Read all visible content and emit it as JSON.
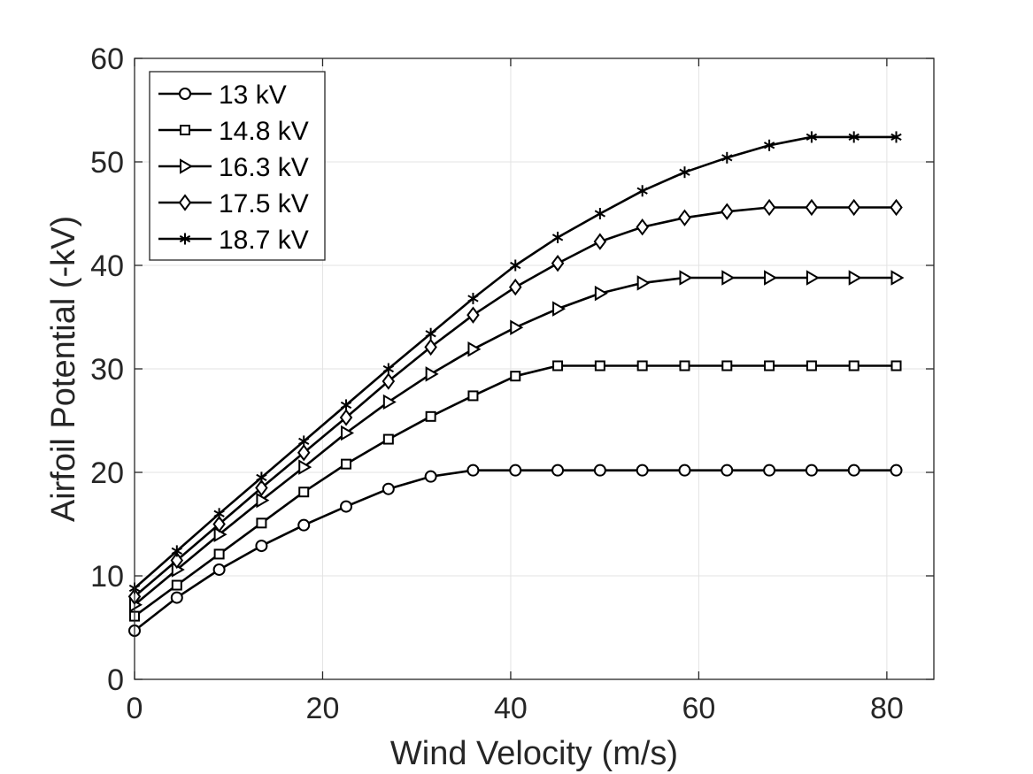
{
  "chart_data": {
    "type": "line",
    "xlabel": "Wind Velocity (m/s)",
    "ylabel": "Airfoil Potential (-kV)",
    "xlim": [
      0,
      85
    ],
    "ylim": [
      0,
      60
    ],
    "xticks": [
      0,
      20,
      40,
      60,
      80
    ],
    "yticks": [
      0,
      10,
      20,
      30,
      40,
      50,
      60
    ],
    "grid": true,
    "legend_position": "top-left",
    "line_color": "#000000",
    "x": [
      0,
      4.5,
      9,
      13.5,
      18,
      22.5,
      27,
      31.5,
      36,
      40.5,
      45,
      49.5,
      54,
      58.5,
      63,
      67.5,
      72,
      76.5,
      81
    ],
    "series": [
      {
        "name": "13 kV",
        "marker": "circle",
        "values": [
          4.7,
          7.9,
          10.6,
          12.9,
          14.9,
          16.7,
          18.4,
          19.6,
          20.2,
          20.2,
          20.2,
          20.2,
          20.2,
          20.2,
          20.2,
          20.2,
          20.2,
          20.2,
          20.2
        ]
      },
      {
        "name": "14.8 kV",
        "marker": "square",
        "values": [
          6.1,
          9.1,
          12.1,
          15.1,
          18.1,
          20.8,
          23.2,
          25.4,
          27.4,
          29.3,
          30.3,
          30.3,
          30.3,
          30.3,
          30.3,
          30.3,
          30.3,
          30.3,
          30.3
        ]
      },
      {
        "name": "16.3 kV",
        "marker": "triangle-right",
        "values": [
          7.2,
          10.6,
          14.0,
          17.3,
          20.5,
          23.8,
          26.8,
          29.5,
          31.9,
          34.0,
          35.8,
          37.3,
          38.3,
          38.8,
          38.8,
          38.8,
          38.8,
          38.8,
          38.8
        ]
      },
      {
        "name": "17.5 kV",
        "marker": "diamond",
        "values": [
          8.0,
          11.5,
          15.0,
          18.5,
          21.9,
          25.3,
          28.8,
          32.1,
          35.2,
          37.9,
          40.2,
          42.3,
          43.7,
          44.6,
          45.2,
          45.6,
          45.6,
          45.6,
          45.6
        ]
      },
      {
        "name": "18.7 kV",
        "marker": "asterisk",
        "values": [
          8.8,
          12.4,
          16.0,
          19.5,
          23.0,
          26.5,
          30.0,
          33.4,
          36.8,
          40.0,
          42.7,
          45.0,
          47.2,
          49.0,
          50.4,
          51.6,
          52.4,
          52.4,
          52.4
        ]
      }
    ]
  }
}
